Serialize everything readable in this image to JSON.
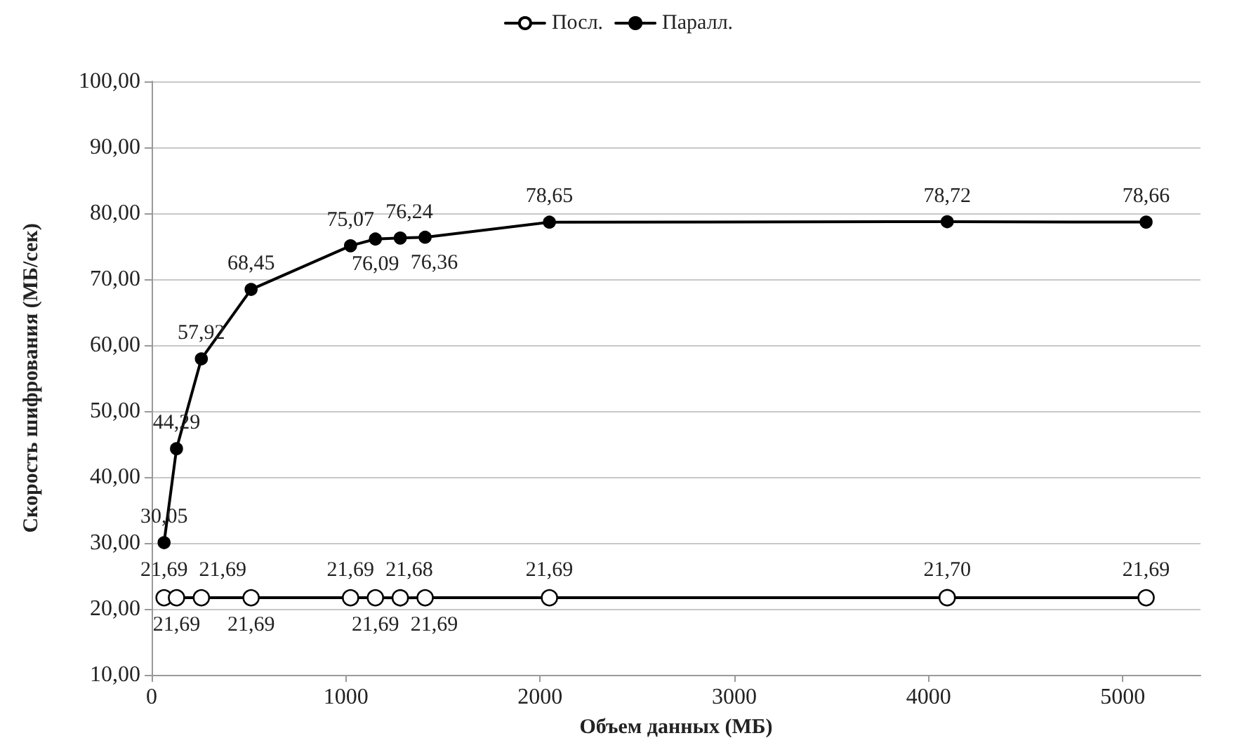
{
  "chart_data": {
    "type": "line",
    "xlabel": "Объем данных (МБ)",
    "ylabel": "Скорость шифрования (МБ/сек)",
    "x": [
      64,
      128,
      256,
      512,
      1024,
      1152,
      1280,
      1408,
      2048,
      4096,
      5120
    ],
    "series": [
      {
        "name": "Посл.",
        "color": "#000000",
        "marker": "circle",
        "values": [
          21.69,
          21.69,
          21.69,
          21.69,
          21.69,
          21.69,
          21.68,
          21.69,
          21.69,
          21.7,
          21.69
        ],
        "value_labels": [
          "21,69",
          "21,69",
          "21,69",
          "21,69",
          "21,69",
          "21,69",
          "21,68",
          "21,69",
          "21,69",
          "21,70",
          "21,69"
        ]
      },
      {
        "name": "Паралл.",
        "color": "#000000",
        "marker": "circle",
        "values": [
          30.05,
          44.29,
          57.92,
          68.45,
          75.07,
          76.09,
          76.24,
          76.36,
          78.65,
          78.72,
          78.66
        ],
        "value_labels": [
          "30,05",
          "44,29",
          "57,92",
          "68,45",
          "75,07",
          "76,09",
          "76,24",
          "76,36",
          "78,65",
          "78,72",
          "78,66"
        ]
      }
    ],
    "xlim": [
      0,
      5400
    ],
    "xticks": [
      0,
      1000,
      2000,
      3000,
      4000,
      5000
    ],
    "ylim": [
      10,
      100
    ],
    "yticks": [
      {
        "value": 10,
        "label": "10,00"
      },
      {
        "value": 20,
        "label": "20,00"
      },
      {
        "value": 30,
        "label": "30,00"
      },
      {
        "value": 40,
        "label": "40,00"
      },
      {
        "value": 50,
        "label": "50,00"
      },
      {
        "value": 60,
        "label": "60,00"
      },
      {
        "value": 70,
        "label": "70,00"
      },
      {
        "value": 80,
        "label": "80,00"
      },
      {
        "value": 90,
        "label": "90,00"
      },
      {
        "value": 100,
        "label": "100,00"
      }
    ],
    "grid": "y",
    "legend": "top",
    "line_style": "solid"
  }
}
